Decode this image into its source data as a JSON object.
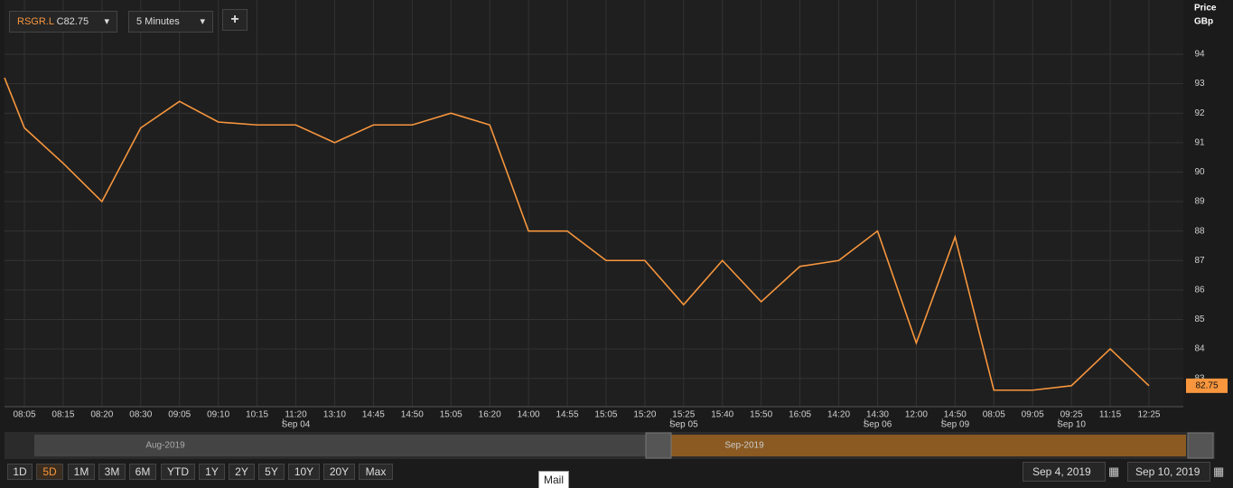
{
  "header": {
    "symbol": "RSGR.L",
    "close_prefix": "C",
    "close": "82.75",
    "interval": "5 Minutes",
    "add": "+"
  },
  "chart_data": {
    "type": "line",
    "y_title": "Price",
    "y_unit": "GBp",
    "categories": [
      null,
      "08:05",
      "08:15",
      "08:20",
      "08:30",
      "09:05",
      "09:10",
      "10:15",
      "11:20",
      "13:10",
      "14:45",
      "14:50",
      "15:05",
      "16:20",
      "14:00",
      "14:55",
      "15:05",
      "15:20",
      "15:25",
      "15:40",
      "15:50",
      "16:05",
      "14:20",
      "14:30",
      "12:00",
      "14:50",
      "08:05",
      "09:05",
      "09:25",
      "11:15",
      "12:25"
    ],
    "x_dates": [
      null,
      null,
      null,
      null,
      null,
      null,
      null,
      null,
      "Sep 04",
      null,
      null,
      null,
      null,
      null,
      null,
      null,
      null,
      null,
      "Sep 05",
      null,
      null,
      null,
      null,
      "Sep 06",
      null,
      "Sep 09",
      null,
      null,
      "Sep 10",
      null,
      null
    ],
    "series": [
      {
        "name": "RSGR.L",
        "color": "#f7963d",
        "values": [
          93.2,
          91.5,
          90.3,
          89.0,
          91.5,
          92.4,
          91.7,
          91.6,
          91.6,
          91.0,
          91.6,
          91.6,
          92.0,
          91.6,
          88.0,
          88.0,
          87.0,
          87.0,
          85.5,
          87.0,
          85.6,
          86.8,
          87.0,
          88.0,
          84.2,
          87.8,
          82.6,
          82.6,
          82.75,
          84.0,
          82.75
        ]
      }
    ],
    "ylim": [
      82.04,
      95.84
    ],
    "yticks": [
      83,
      84,
      85,
      86,
      87,
      88,
      89,
      90,
      91,
      92,
      93,
      94
    ],
    "grid": true,
    "last_price": {
      "value": 82.75,
      "label": "82.75"
    }
  },
  "navigator": {
    "left_label": "Aug-2019",
    "right_label": "Sep-2019"
  },
  "toolbar": {
    "ranges": [
      "1D",
      "5D",
      "1M",
      "3M",
      "6M",
      "YTD",
      "1Y",
      "2Y",
      "5Y",
      "10Y",
      "20Y",
      "Max"
    ],
    "active_index": 1,
    "from_date": "Sep 4, 2019",
    "to_date": "Sep 10, 2019"
  },
  "tooltip": "Mail"
}
